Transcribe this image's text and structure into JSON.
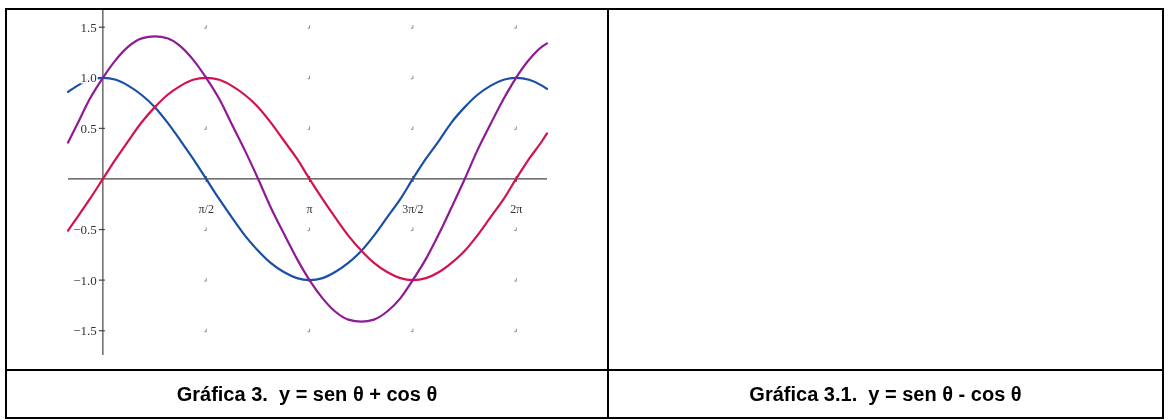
{
  "chart_data": {
    "type": "line",
    "title": "Gráfica 3.  y = sen θ + cos θ",
    "annotations": [
      "Gráfica 3.1.  y = sen θ - cos θ"
    ],
    "x": [
      -0.53,
      -0.39,
      -0.2,
      0,
      0.2,
      0.39,
      0.59,
      0.79,
      0.98,
      1.18,
      1.37,
      1.57,
      1.77,
      1.96,
      2.16,
      2.36,
      2.55,
      2.75,
      2.95,
      3.14,
      3.34,
      3.53,
      3.73,
      3.93,
      4.12,
      4.32,
      4.52,
      4.71,
      4.91,
      5.11,
      5.3,
      5.5,
      5.69,
      5.89,
      6.09,
      6.28,
      6.48,
      6.68,
      6.75
    ],
    "series": [
      {
        "color": "#1a4fa6",
        "values": [
          0.86,
          0.92,
          0.98,
          1,
          0.98,
          0.92,
          0.83,
          0.71,
          0.56,
          0.38,
          0.2,
          0,
          -0.2,
          -0.38,
          -0.56,
          -0.71,
          -0.83,
          -0.92,
          -0.98,
          -1,
          -0.98,
          -0.92,
          -0.83,
          -0.71,
          -0.56,
          -0.38,
          -0.2,
          0,
          0.2,
          0.38,
          0.56,
          0.71,
          0.83,
          0.92,
          0.98,
          1,
          0.98,
          0.92,
          0.89
        ]
      },
      {
        "color": "#d3134b",
        "values": [
          -0.51,
          -0.38,
          -0.2,
          0,
          0.2,
          0.38,
          0.56,
          0.71,
          0.83,
          0.92,
          0.98,
          1,
          0.98,
          0.92,
          0.83,
          0.71,
          0.56,
          0.38,
          0.2,
          0,
          -0.2,
          -0.38,
          -0.56,
          -0.71,
          -0.83,
          -0.92,
          -0.98,
          -1,
          -0.98,
          -0.92,
          -0.83,
          -0.71,
          -0.56,
          -0.38,
          -0.2,
          0,
          0.2,
          0.38,
          0.45
        ]
      },
      {
        "color": "#8e1a94",
        "values": [
          0.36,
          0.54,
          0.79,
          1,
          1.18,
          1.31,
          1.39,
          1.41,
          1.39,
          1.31,
          1.18,
          1,
          0.79,
          0.54,
          0.28,
          0,
          -0.28,
          -0.54,
          -0.79,
          -1,
          -1.18,
          -1.31,
          -1.39,
          -1.41,
          -1.39,
          -1.31,
          -1.18,
          -1,
          -0.79,
          -0.54,
          -0.28,
          0,
          0.28,
          0.54,
          0.79,
          1,
          1.18,
          1.31,
          1.34
        ]
      }
    ],
    "xlim": [
      -0.53,
      6.75
    ],
    "ylim": [
      -1.74,
      1.67
    ],
    "xticks": [
      {
        "value": 1.571,
        "label": "π/2"
      },
      {
        "value": 3.142,
        "label": "π"
      },
      {
        "value": 4.712,
        "label": "3π/2"
      },
      {
        "value": 6.283,
        "label": "2π"
      }
    ],
    "yticks": [
      1.5,
      {
        "value": 1,
        "label": "1.0"
      },
      0.5,
      {
        "value": -0.5,
        "label": "−0.5"
      },
      {
        "value": -1,
        "label": "−1.0"
      },
      {
        "value": -1.5,
        "label": "−1.5"
      }
    ],
    "grid": true
  }
}
